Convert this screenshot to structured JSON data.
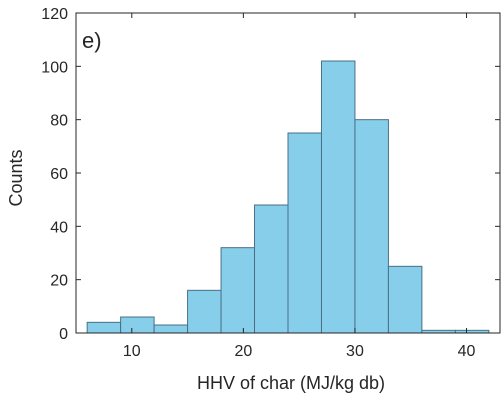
{
  "chart_data": {
    "type": "bar",
    "title": "",
    "panel_label": "e)",
    "xlabel": "HHV of char (MJ/kg db)",
    "ylabel": "Counts",
    "xlim": [
      5,
      43
    ],
    "ylim": [
      0,
      120
    ],
    "xticks": [
      10,
      20,
      30,
      40
    ],
    "yticks": [
      0,
      20,
      40,
      60,
      80,
      100,
      120
    ],
    "bin_edges": [
      6,
      9,
      12,
      15,
      18,
      21,
      24,
      27,
      30,
      33,
      36,
      39,
      42
    ],
    "values": [
      4,
      6,
      3,
      16,
      32,
      48,
      75,
      102,
      80,
      25,
      1,
      1
    ],
    "grid": false,
    "colors": {
      "bar_fill": "#87CEEB",
      "bar_stroke": "#4A6F86",
      "axis": "#262626",
      "text": "#262626"
    }
  }
}
